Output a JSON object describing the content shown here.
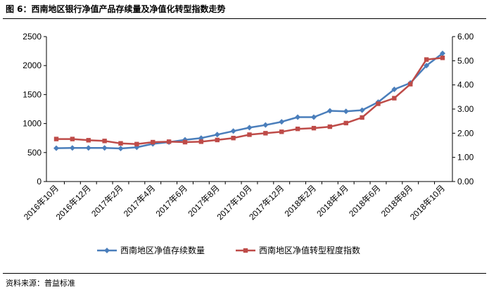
{
  "figure": {
    "title": "图 6：西南地区银行净值产品存续量及净值化转型指数走势",
    "source": "资料来源：普益标准"
  },
  "chart_data": {
    "type": "line",
    "x": [
      "2016年10月",
      "2016年11月",
      "2016年12月",
      "2017年1月",
      "2017年2月",
      "2017年3月",
      "2017年4月",
      "2017年5月",
      "2017年6月",
      "2017年7月",
      "2017年8月",
      "2017年9月",
      "2017年10月",
      "2017年11月",
      "2017年12月",
      "2018年1月",
      "2018年2月",
      "2018年3月",
      "2018年4月",
      "2018年5月",
      "2018年6月",
      "2018年7月",
      "2018年8月",
      "2018年9月",
      "2018年10月"
    ],
    "x_tick_labels": [
      "2016年10月",
      "2016年12月",
      "2017年2月",
      "2017年4月",
      "2017年6月",
      "2017年8月",
      "2017年10月",
      "2017年12月",
      "2018年2月",
      "2018年4月",
      "2018年6月",
      "2018年8月",
      "2018年10月"
    ],
    "series": [
      {
        "name": "西南地区净值存续数量",
        "axis": "left",
        "color": "#4A7EBB",
        "marker": "diamond",
        "values": [
          575,
          580,
          580,
          580,
          570,
          590,
          650,
          680,
          720,
          750,
          810,
          870,
          930,
          975,
          1030,
          1110,
          1110,
          1220,
          1210,
          1230,
          1370,
          1590,
          1700,
          2000,
          2210
        ]
      },
      {
        "name": "西南地区净值转型程度指数",
        "axis": "right",
        "color": "#BE4B48",
        "marker": "square",
        "values": [
          1.76,
          1.76,
          1.71,
          1.68,
          1.58,
          1.55,
          1.63,
          1.65,
          1.63,
          1.65,
          1.72,
          1.8,
          1.94,
          2.0,
          2.06,
          2.18,
          2.21,
          2.27,
          2.42,
          2.65,
          3.22,
          3.45,
          4.03,
          5.05,
          5.12
        ]
      }
    ],
    "y_left": {
      "min": 0,
      "max": 2500,
      "step": 500,
      "tick_labels": [
        "0",
        "500",
        "1000",
        "1500",
        "2000",
        "2500"
      ]
    },
    "y_right": {
      "min": 0,
      "max": 6,
      "step": 1,
      "tick_labels": [
        "0.00",
        "1.00",
        "2.00",
        "3.00",
        "4.00",
        "5.00",
        "6.00"
      ]
    },
    "grid": false,
    "legend": "bottom"
  }
}
